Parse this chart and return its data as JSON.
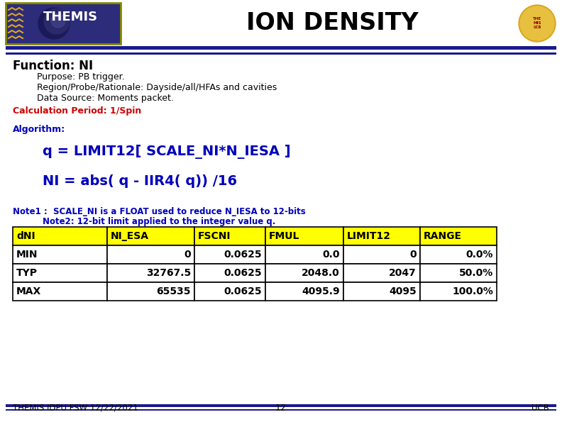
{
  "title": "ION DENSITY",
  "function_label": "Function: NI",
  "purpose": "Purpose: PB trigger.",
  "region": "Region/Probe/Rationale: Dayside/all/HFAs and cavities",
  "datasource": "Data Source: Moments packet.",
  "calc_period_label": "Calculation Period: 1/Spin",
  "algorithm_label": "Algorithm:",
  "eq1": "q = LIMIT12[ SCALE_NI*N_IESA ]",
  "eq2": "NI = abs( q - IIR4( q)) /16",
  "note1": "Note1 :  SCALE_NI is a FLOAT used to reduce N_IESA to 12-bits",
  "note2": "Note2: 12-bit limit applied to the integer value q.",
  "footer_left": "THEMIS IDPU FSW 12/22/2021",
  "footer_center": "12",
  "footer_right": "UCB",
  "table_headers": [
    "dNI",
    "NI_ESA",
    "FSCNI",
    "FMUL",
    "LIMIT12",
    "RANGE"
  ],
  "table_rows": [
    [
      "MIN",
      "0",
      "0.0625",
      "0.0",
      "0",
      "0.0%"
    ],
    [
      "TYP",
      "32767.5",
      "0.0625",
      "2048.0",
      "2047",
      "50.0%"
    ],
    [
      "MAX",
      "65535",
      "0.0625",
      "4095.9",
      "4095",
      "100.0%"
    ]
  ],
  "header_bg": "#FFFF00",
  "header_fg": "#000000",
  "row_bg": "#FFFFFF",
  "row_fg": "#000000",
  "table_border": "#000000",
  "blue_color": "#0000BB",
  "red_color": "#CC0000",
  "header_bar_color": "#1A1A8C",
  "bg_color": "#FFFFFF",
  "themis_box_color": "#2B2B7A",
  "themis_box_border": "#888800",
  "athena_color": "#DAA520"
}
